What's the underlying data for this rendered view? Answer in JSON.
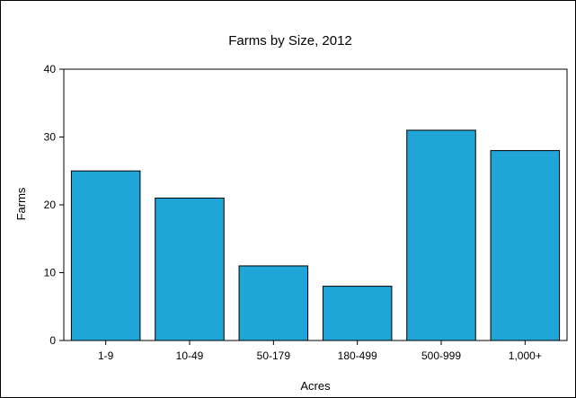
{
  "chart_data": {
    "type": "bar",
    "title": "Farms by Size, 2012",
    "xlabel": "Acres",
    "ylabel": "Farms",
    "categories": [
      "1-9",
      "10-49",
      "50-179",
      "180-499",
      "500-999",
      "1,000+"
    ],
    "values": [
      25,
      21,
      11,
      8,
      31,
      28
    ],
    "ylim": [
      0,
      40
    ],
    "yticks": [
      0,
      10,
      20,
      30,
      40
    ],
    "grid": false,
    "legend": "none",
    "bar_color": "#1fa5d8",
    "bar_edge_color": "#000000"
  }
}
